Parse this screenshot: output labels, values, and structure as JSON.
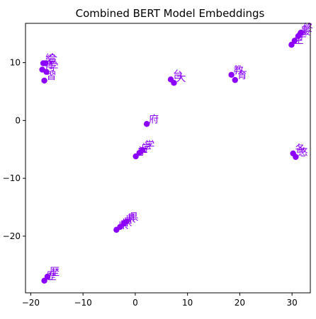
{
  "chart_data": {
    "type": "scatter",
    "title": "Combined BERT Model Embeddings",
    "xlabel": "",
    "ylabel": "",
    "xlim": [
      -21,
      33.5
    ],
    "ylim": [
      -29.8,
      16.8
    ],
    "xticks": [
      -20,
      -10,
      0,
      10,
      20,
      30
    ],
    "yticks": [
      -20,
      -10,
      0,
      10
    ],
    "xtick_labels": [
      "−20",
      "−10",
      "0",
      "10",
      "20",
      "30"
    ],
    "ytick_labels": [
      "−20",
      "−10",
      "0",
      "10"
    ],
    "grid": false,
    "marker_color": "#8b00ff",
    "points": [
      {
        "x": -17.6,
        "y": 9.9,
        "label": "綜"
      },
      {
        "x": -17.2,
        "y": 9.9,
        "label": "合"
      },
      {
        "x": -17.8,
        "y": 8.8,
        "label": "育"
      },
      {
        "x": -17.0,
        "y": 8.4,
        "label": "学"
      },
      {
        "x": -17.4,
        "y": 6.9,
        "label": "習"
      },
      {
        "x": 6.8,
        "y": 7.1,
        "label": "台"
      },
      {
        "x": 7.4,
        "y": 6.5,
        "label": "大"
      },
      {
        "x": 18.4,
        "y": 7.9,
        "label": "教"
      },
      {
        "x": 19.1,
        "y": 7.0,
        "label": "育"
      },
      {
        "x": 29.9,
        "y": 13.1,
        "label": "生"
      },
      {
        "x": 30.5,
        "y": 13.8,
        "label": "学"
      },
      {
        "x": 31.2,
        "y": 14.6,
        "label": "最"
      },
      {
        "x": 31.7,
        "y": 15.2,
        "label": "終"
      },
      {
        "x": 2.2,
        "y": -0.6,
        "label": "府"
      },
      {
        "x": 0.1,
        "y": -6.2,
        "label": "学"
      },
      {
        "x": 0.8,
        "y": -5.6,
        "label": "学"
      },
      {
        "x": 1.4,
        "y": -5.1,
        "label": "学"
      },
      {
        "x": 30.2,
        "y": -5.7,
        "label": "各"
      },
      {
        "x": 30.7,
        "y": -6.3,
        "label": "悠"
      },
      {
        "x": -3.6,
        "y": -18.9,
        "label": "県"
      },
      {
        "x": -2.9,
        "y": -18.4,
        "label": "県"
      },
      {
        "x": -2.2,
        "y": -17.8,
        "label": "県"
      },
      {
        "x": -1.7,
        "y": -17.5,
        "label": "県"
      },
      {
        "x": -17.4,
        "y": -27.7,
        "label": "歴"
      },
      {
        "x": -16.8,
        "y": -27.0,
        "label": "歴"
      }
    ]
  }
}
